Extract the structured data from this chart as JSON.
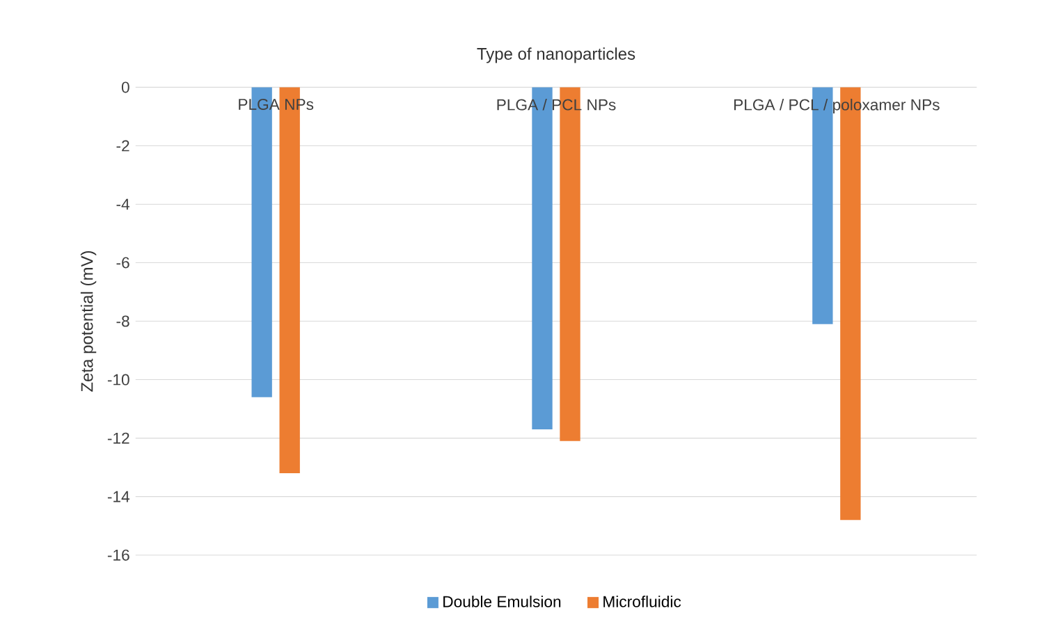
{
  "chart_data": {
    "type": "bar",
    "xlabel": "Type of nanoparticles",
    "ylabel": "Zeta potential (mV)",
    "categories": [
      "PLGA NPs",
      "PLGA / PCL NPs",
      "PLGA / PCL / poloxamer NPs"
    ],
    "series": [
      {
        "name": "Double Emulsion",
        "color": "#5b9bd5",
        "values": [
          -10.6,
          -11.7,
          -8.1
        ]
      },
      {
        "name": "Microfluidic",
        "color": "#ed7d31",
        "values": [
          -13.2,
          -12.1,
          -14.8
        ]
      }
    ],
    "ylim": [
      -16,
      0
    ],
    "yticks": [
      0,
      -2,
      -4,
      -6,
      -8,
      -10,
      -12,
      -14,
      -16
    ],
    "grid": "y",
    "legend": "bottom"
  }
}
